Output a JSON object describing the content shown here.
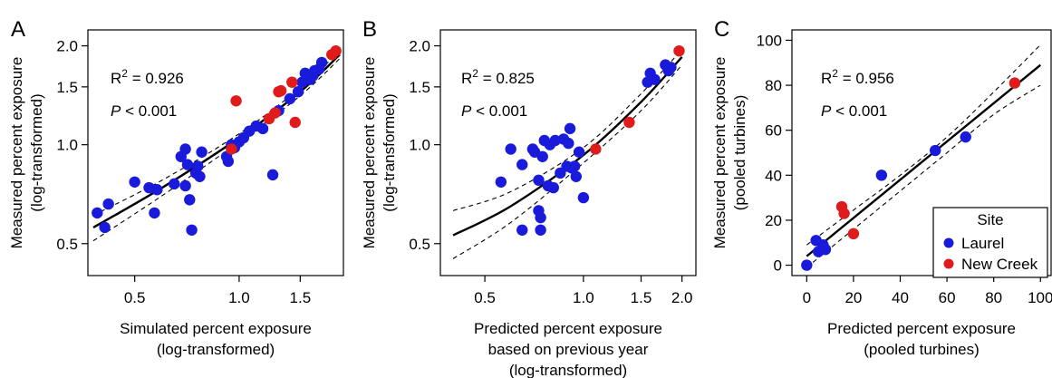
{
  "chart_data": [
    {
      "panel_letter": "A",
      "type": "scatter",
      "xscale": "log",
      "yscale": "log",
      "xlim": [
        0.38,
        1.95
      ],
      "ylim": [
        0.41,
        2.18
      ],
      "xticks": [
        0.5,
        1.0,
        1.5
      ],
      "xtick_labels": [
        "0.5",
        "1.0",
        "1.5"
      ],
      "yticks": [
        0.5,
        1.0,
        1.5,
        2.0
      ],
      "ytick_labels": [
        "0.5",
        "1.0",
        "1.5",
        "2.0"
      ],
      "xlabel": [
        "Simulated percent exposure",
        "(log-transformed)"
      ],
      "ylabel": [
        "Measured percent exposure",
        "(log-transformed)"
      ],
      "r2": "= 0.926",
      "p_text": "< 0.001",
      "fit": {
        "x": [
          0.38,
          0.6,
          1.0,
          1.5,
          1.95
        ],
        "y": [
          0.56,
          0.74,
          1.05,
          1.45,
          1.88
        ]
      },
      "ci_upper": {
        "x": [
          0.38,
          0.6,
          1.0,
          1.5,
          1.95
        ],
        "y": [
          0.61,
          0.78,
          1.08,
          1.49,
          1.93
        ]
      },
      "ci_lower": {
        "x": [
          0.38,
          0.6,
          1.0,
          1.5,
          1.95
        ],
        "y": [
          0.51,
          0.7,
          1.02,
          1.41,
          1.83
        ]
      },
      "series": [
        {
          "name": "Laurel",
          "color": "#1a1adb",
          "points": [
            [
              0.39,
              0.62
            ],
            [
              0.41,
              0.56
            ],
            [
              0.42,
              0.66
            ],
            [
              0.5,
              0.77
            ],
            [
              0.55,
              0.74
            ],
            [
              0.58,
              0.73
            ],
            [
              0.57,
              0.62
            ],
            [
              0.65,
              0.76
            ],
            [
              0.68,
              0.92
            ],
            [
              0.7,
              0.97
            ],
            [
              0.7,
              0.75
            ],
            [
              0.71,
              0.87
            ],
            [
              0.72,
              0.68
            ],
            [
              0.73,
              0.55
            ],
            [
              0.75,
              0.82
            ],
            [
              0.76,
              0.86
            ],
            [
              0.78,
              0.95
            ],
            [
              0.77,
              0.8
            ],
            [
              0.92,
              0.92
            ],
            [
              0.93,
              0.89
            ],
            [
              0.95,
              1.0
            ],
            [
              0.97,
              0.98
            ],
            [
              1.0,
              1.02
            ],
            [
              1.03,
              1.05
            ],
            [
              1.07,
              1.1
            ],
            [
              1.12,
              1.14
            ],
            [
              1.17,
              1.12
            ],
            [
              1.25,
              0.81
            ],
            [
              1.3,
              1.27
            ],
            [
              1.4,
              1.38
            ],
            [
              1.48,
              1.45
            ],
            [
              1.52,
              1.55
            ],
            [
              1.55,
              1.65
            ],
            [
              1.58,
              1.6
            ],
            [
              1.6,
              1.58
            ],
            [
              1.63,
              1.62
            ],
            [
              1.65,
              1.68
            ],
            [
              1.7,
              1.7
            ],
            [
              1.73,
              1.78
            ]
          ]
        },
        {
          "name": "New Creek",
          "color": "#e01b1b",
          "points": [
            [
              0.95,
              0.97
            ],
            [
              0.98,
              1.36
            ],
            [
              1.22,
              1.2
            ],
            [
              1.27,
              1.25
            ],
            [
              1.3,
              1.45
            ],
            [
              1.32,
              1.46
            ],
            [
              1.42,
              1.55
            ],
            [
              1.45,
              1.17
            ],
            [
              1.85,
              1.88
            ],
            [
              1.9,
              1.93
            ]
          ]
        }
      ]
    },
    {
      "panel_letter": "B",
      "type": "scatter",
      "xscale": "log",
      "yscale": "log",
      "xlim": [
        0.38,
        2.15
      ],
      "ylim": [
        0.41,
        2.18
      ],
      "xticks": [
        0.5,
        1.0,
        1.5,
        2.0
      ],
      "xtick_labels": [
        "0.5",
        "1.0",
        "1.5",
        "2.0"
      ],
      "yticks": [
        0.5,
        1.0,
        1.5,
        2.0
      ],
      "ytick_labels": [
        "0.5",
        "1.0",
        "1.5",
        "2.0"
      ],
      "xlabel": [
        "Predicted percent exposure",
        "based on previous year",
        "(log-transformed)"
      ],
      "ylabel": [
        "Measured percent exposure",
        "(log-transformed)"
      ],
      "r2": "= 0.825",
      "p_text": "< 0.001",
      "fit": {
        "x": [
          0.4,
          0.6,
          1.0,
          1.5,
          2.0
        ],
        "y": [
          0.53,
          0.65,
          0.93,
          1.35,
          1.85
        ]
      },
      "ci_upper": {
        "x": [
          0.4,
          0.6,
          1.0,
          1.5,
          2.0
        ],
        "y": [
          0.63,
          0.72,
          0.98,
          1.43,
          1.95
        ]
      },
      "ci_lower": {
        "x": [
          0.4,
          0.6,
          1.0,
          1.5,
          2.0
        ],
        "y": [
          0.45,
          0.58,
          0.88,
          1.27,
          1.75
        ]
      },
      "series": [
        {
          "name": "Laurel",
          "color": "#1a1adb",
          "points": [
            [
              0.56,
              0.77
            ],
            [
              0.6,
              0.97
            ],
            [
              0.65,
              0.55
            ],
            [
              0.65,
              0.87
            ],
            [
              0.7,
              0.97
            ],
            [
              0.71,
              0.95
            ],
            [
              0.73,
              0.78
            ],
            [
              0.73,
              0.63
            ],
            [
              0.74,
              0.6
            ],
            [
              0.74,
              0.55
            ],
            [
              0.75,
              0.92
            ],
            [
              0.76,
              1.03
            ],
            [
              0.78,
              0.75
            ],
            [
              0.79,
              1.0
            ],
            [
              0.81,
              0.74
            ],
            [
              0.82,
              1.03
            ],
            [
              0.85,
              0.82
            ],
            [
              0.87,
              1.04
            ],
            [
              0.89,
              0.86
            ],
            [
              0.9,
              1.01
            ],
            [
              0.91,
              1.12
            ],
            [
              0.92,
              0.85
            ],
            [
              0.94,
              0.86
            ],
            [
              0.95,
              0.8
            ],
            [
              0.97,
              0.95
            ],
            [
              1.0,
              0.69
            ],
            [
              1.57,
              1.55
            ],
            [
              1.6,
              1.65
            ],
            [
              1.65,
              1.58
            ],
            [
              1.78,
              1.75
            ],
            [
              1.82,
              1.68
            ],
            [
              1.85,
              1.72
            ]
          ]
        },
        {
          "name": "New Creek",
          "color": "#e01b1b",
          "points": [
            [
              1.09,
              0.97
            ],
            [
              1.38,
              1.17
            ],
            [
              1.96,
              1.93
            ]
          ]
        }
      ]
    },
    {
      "panel_letter": "C",
      "type": "scatter",
      "xscale": "linear",
      "yscale": "linear",
      "xlim": [
        -4,
        103
      ],
      "ylim": [
        -3,
        103
      ],
      "xticks": [
        0,
        20,
        40,
        60,
        80,
        100
      ],
      "xtick_labels": [
        "0",
        "20",
        "40",
        "60",
        "80",
        "100"
      ],
      "yticks": [
        0,
        20,
        40,
        60,
        80,
        100
      ],
      "ytick_labels": [
        "0",
        "20",
        "40",
        "60",
        "80",
        "100"
      ],
      "xlabel": [
        "Predicted percent exposure",
        "(pooled turbines)"
      ],
      "ylabel": [
        "Measured percent exposure",
        "(pooled turbines)"
      ],
      "r2": "= 0.956",
      "p_text": "< 0.001",
      "fit": {
        "x": [
          0,
          100
        ],
        "y": [
          4,
          89
        ]
      },
      "ci_upper": {
        "x": [
          0,
          20,
          40,
          60,
          80,
          100
        ],
        "y": [
          9,
          24.5,
          40,
          57,
          77,
          98
        ]
      },
      "ci_lower": {
        "x": [
          0,
          20,
          40,
          60,
          80,
          100
        ],
        "y": [
          -1,
          16,
          33,
          50,
          67,
          80
        ]
      },
      "legend": {
        "title": "Site",
        "position": "bottom-right",
        "entries": [
          "Laurel",
          "New Creek"
        ]
      },
      "series": [
        {
          "name": "Laurel",
          "color": "#1a1adb",
          "points": [
            [
              0,
              0
            ],
            [
              4,
              11
            ],
            [
              5,
              6
            ],
            [
              7,
              9
            ],
            [
              8,
              7
            ],
            [
              32,
              40
            ],
            [
              55,
              51
            ],
            [
              68,
              57
            ]
          ]
        },
        {
          "name": "New Creek",
          "color": "#e01b1b",
          "points": [
            [
              15,
              26
            ],
            [
              16,
              23
            ],
            [
              20,
              14
            ],
            [
              89,
              81
            ]
          ]
        }
      ]
    }
  ]
}
